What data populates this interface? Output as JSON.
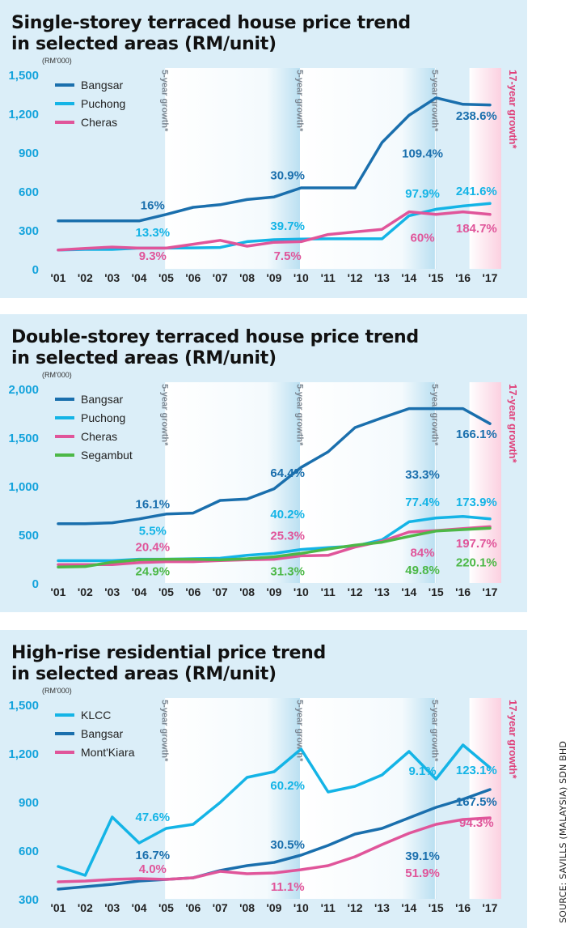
{
  "source": "SOURCE: SAVILLS (MALAYSIA) SDN BHD",
  "chart_data": [
    {
      "type": "line",
      "title": "Single-storey terraced house price trend in selected areas (RM/unit)",
      "title_lines": [
        "Single-storey terraced house price trend",
        "in selected areas (RM/unit)"
      ],
      "unit_label": "(RM'000)",
      "x_labels": [
        "'01",
        "'02",
        "'03",
        "'04",
        "'05",
        "'06",
        "'07",
        "'08",
        "'09",
        "'10",
        "'11",
        "'12",
        "'13",
        "'14",
        "'15",
        "'16",
        "'17"
      ],
      "y_ticks": [
        0,
        300,
        600,
        900,
        1200,
        1500
      ],
      "y_tick_labels": [
        "0",
        "300",
        "600",
        "900",
        "1,200",
        "1,500"
      ],
      "ylim": [
        0,
        1500
      ],
      "band_label": "5-year growth*",
      "band17_label": "17-year growth*",
      "legend_position": "top-left",
      "series": [
        {
          "name": "Bangsar",
          "color": "#1a6fad",
          "values": [
            370,
            370,
            370,
            370,
            420,
            475,
            495,
            535,
            555,
            625,
            625,
            625,
            975,
            1185,
            1320,
            1270,
            1265
          ]
        },
        {
          "name": "Puchong",
          "color": "#14b4e6",
          "values": [
            145,
            150,
            150,
            160,
            160,
            162,
            165,
            210,
            225,
            230,
            232,
            232,
            232,
            410,
            460,
            485,
            505
          ]
        },
        {
          "name": "Cheras",
          "color": "#e0559a",
          "values": [
            145,
            158,
            168,
            160,
            160,
            190,
            220,
            175,
            205,
            210,
            265,
            285,
            305,
            440,
            420,
            440,
            420
          ]
        }
      ],
      "annotations": [
        {
          "text": "16%",
          "color": "#1a6fad",
          "x": 3.5,
          "y": 460
        },
        {
          "text": "13.3%",
          "color": "#14b4e6",
          "x": 3.5,
          "y": 250
        },
        {
          "text": "9.3%",
          "color": "#e0559a",
          "x": 3.5,
          "y": 70
        },
        {
          "text": "30.9%",
          "color": "#1a6fad",
          "x": 8.5,
          "y": 690
        },
        {
          "text": "39.7%",
          "color": "#14b4e6",
          "x": 8.5,
          "y": 300
        },
        {
          "text": "7.5%",
          "color": "#e0559a",
          "x": 8.5,
          "y": 70
        },
        {
          "text": "109.4%",
          "color": "#1a6fad",
          "x": 13.5,
          "y": 860
        },
        {
          "text": "97.9%",
          "color": "#14b4e6",
          "x": 13.5,
          "y": 550
        },
        {
          "text": "60%",
          "color": "#e0559a",
          "x": 13.5,
          "y": 210
        },
        {
          "text": "238.6%",
          "color": "#1a6fad",
          "x": 15.5,
          "y": 1150
        },
        {
          "text": "241.6%",
          "color": "#14b4e6",
          "x": 15.5,
          "y": 570
        },
        {
          "text": "184.7%",
          "color": "#e0559a",
          "x": 15.5,
          "y": 280
        }
      ]
    },
    {
      "type": "line",
      "title": "Double-storey terraced house price trend in selected areas (RM/unit)",
      "title_lines": [
        "Double-storey terraced house price trend",
        "in selected areas (RM/unit)"
      ],
      "unit_label": "(RM'000)",
      "x_labels": [
        "'01",
        "'02",
        "'03",
        "'04",
        "'05",
        "'06",
        "'07",
        "'08",
        "'09",
        "'10",
        "'11",
        "'12",
        "'13",
        "'14",
        "'15",
        "'16",
        "'17"
      ],
      "y_ticks": [
        0,
        500,
        1000,
        1500,
        2000
      ],
      "y_tick_labels": [
        "0",
        "500",
        "1,000",
        "1,500",
        "2,000"
      ],
      "ylim": [
        0,
        2000
      ],
      "band_label": "5-year growth*",
      "band17_label": "17-year growth*",
      "legend_position": "top-left",
      "series": [
        {
          "name": "Bangsar",
          "color": "#1a6fad",
          "values": [
            610,
            610,
            620,
            660,
            710,
            720,
            850,
            865,
            970,
            1190,
            1350,
            1600,
            1700,
            1795,
            1795,
            1795,
            1640
          ]
        },
        {
          "name": "Puchong",
          "color": "#14b4e6",
          "values": [
            230,
            230,
            230,
            245,
            245,
            250,
            255,
            285,
            305,
            345,
            365,
            380,
            445,
            630,
            670,
            685,
            660
          ]
        },
        {
          "name": "Cheras",
          "color": "#e0559a",
          "values": [
            190,
            190,
            190,
            210,
            220,
            220,
            232,
            240,
            245,
            280,
            285,
            370,
            430,
            525,
            540,
            560,
            580
          ]
        },
        {
          "name": "Segambut",
          "color": "#4cb847",
          "values": [
            165,
            170,
            215,
            240,
            245,
            245,
            238,
            250,
            270,
            305,
            350,
            390,
            420,
            480,
            535,
            550,
            565
          ]
        }
      ],
      "annotations": [
        {
          "text": "16.1%",
          "color": "#1a6fad",
          "x": 3.5,
          "y": 770
        },
        {
          "text": "5.5%",
          "color": "#14b4e6",
          "x": 3.5,
          "y": 495
        },
        {
          "text": "20.4%",
          "color": "#e0559a",
          "x": 3.5,
          "y": 330
        },
        {
          "text": "24.9%",
          "color": "#4cb847",
          "x": 3.5,
          "y": 80
        },
        {
          "text": "64.4%",
          "color": "#1a6fad",
          "x": 8.5,
          "y": 1090
        },
        {
          "text": "40.2%",
          "color": "#14b4e6",
          "x": 8.5,
          "y": 665
        },
        {
          "text": "25.3%",
          "color": "#e0559a",
          "x": 8.5,
          "y": 445
        },
        {
          "text": "31.3%",
          "color": "#4cb847",
          "x": 8.5,
          "y": 80
        },
        {
          "text": "33.3%",
          "color": "#1a6fad",
          "x": 13.5,
          "y": 1075
        },
        {
          "text": "77.4%",
          "color": "#14b4e6",
          "x": 13.5,
          "y": 790
        },
        {
          "text": "84%",
          "color": "#e0559a",
          "x": 13.5,
          "y": 270
        },
        {
          "text": "49.8%",
          "color": "#4cb847",
          "x": 13.5,
          "y": 90
        },
        {
          "text": "166.1%",
          "color": "#1a6fad",
          "x": 15.5,
          "y": 1490
        },
        {
          "text": "173.9%",
          "color": "#14b4e6",
          "x": 15.5,
          "y": 790
        },
        {
          "text": "197.7%",
          "color": "#e0559a",
          "x": 15.5,
          "y": 365
        },
        {
          "text": "220.1%",
          "color": "#4cb847",
          "x": 15.5,
          "y": 170
        }
      ]
    },
    {
      "type": "line",
      "title": "High-rise residential price trend in selected areas (RM/unit)",
      "title_lines": [
        "High-rise residential price trend",
        "in selected areas (RM/unit)"
      ],
      "unit_label": "(RM'000)",
      "x_labels": [
        "'01",
        "'02",
        "'03",
        "'04",
        "'05",
        "'06",
        "'07",
        "'08",
        "'09",
        "'10",
        "'11",
        "'12",
        "'13",
        "'14",
        "'15",
        "'16",
        "'17"
      ],
      "y_ticks": [
        300,
        600,
        900,
        1200,
        1500
      ],
      "y_tick_labels": [
        "300",
        "600",
        "900",
        "1,200",
        "1,500"
      ],
      "ylim": [
        300,
        1500
      ],
      "band_label": "5-year growth*",
      "band17_label": "17-year growth*",
      "legend_position": "top-left",
      "series": [
        {
          "name": "KLCC",
          "color": "#14b4e6",
          "values": [
            500,
            445,
            805,
            645,
            735,
            760,
            895,
            1050,
            1085,
            1225,
            960,
            995,
            1065,
            1210,
            1040,
            1250,
            1110
          ]
        },
        {
          "name": "Bangsar",
          "color": "#1a6fad",
          "values": [
            360,
            375,
            390,
            410,
            420,
            430,
            475,
            505,
            525,
            570,
            630,
            700,
            735,
            800,
            865,
            915,
            975
          ]
        },
        {
          "name": "Mont'Kiara",
          "color": "#e0559a",
          "values": [
            405,
            410,
            420,
            425,
            420,
            430,
            470,
            455,
            460,
            480,
            505,
            560,
            635,
            705,
            760,
            790,
            800
          ]
        }
      ],
      "annotations": [
        {
          "text": "47.6%",
          "color": "#14b4e6",
          "x": 3.5,
          "y": 780
        },
        {
          "text": "16.7%",
          "color": "#1a6fad",
          "x": 3.5,
          "y": 545
        },
        {
          "text": "4.0%",
          "color": "#e0559a",
          "x": 3.5,
          "y": 460
        },
        {
          "text": "60.2%",
          "color": "#14b4e6",
          "x": 8.5,
          "y": 975
        },
        {
          "text": "30.5%",
          "color": "#1a6fad",
          "x": 8.5,
          "y": 610
        },
        {
          "text": "11.1%",
          "color": "#e0559a",
          "x": 8.5,
          "y": 350
        },
        {
          "text": "9.1%",
          "color": "#14b4e6",
          "x": 13.5,
          "y": 1065
        },
        {
          "text": "39.1%",
          "color": "#1a6fad",
          "x": 13.5,
          "y": 540
        },
        {
          "text": "51.9%",
          "color": "#e0559a",
          "x": 13.5,
          "y": 435
        },
        {
          "text": "123.1%",
          "color": "#14b4e6",
          "x": 15.5,
          "y": 1070
        },
        {
          "text": "167.5%",
          "color": "#1a6fad",
          "x": 15.5,
          "y": 875
        },
        {
          "text": "94.3%",
          "color": "#e0559a",
          "x": 15.5,
          "y": 745
        }
      ]
    }
  ]
}
